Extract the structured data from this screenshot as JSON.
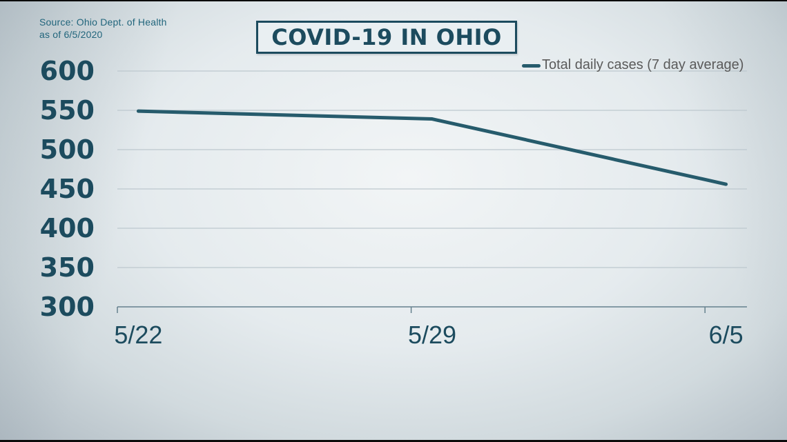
{
  "page": {
    "source_line1": "Source: Ohio Dept. of Health",
    "source_line2": "as of 6/5/2020",
    "title": "COVID-19 IN OHIO"
  },
  "legend": {
    "label": "Total daily cases (7 day average)"
  },
  "colors": {
    "teal_text": "#1c4b5e",
    "line": "#265b6c",
    "grid": "#bdc8ce",
    "axis": "#64808d",
    "legend_text": "#5a5a5a",
    "source_text": "#21657c"
  },
  "chart_data": {
    "type": "line",
    "title": "COVID-19 IN OHIO",
    "series": [
      {
        "name": "Total daily cases (7 day average)",
        "x": [
          "5/22",
          "5/29",
          "6/5"
        ],
        "day_index": [
          0,
          7,
          14
        ],
        "values": [
          549,
          539,
          456
        ]
      }
    ],
    "x_tick_labels": [
      "5/22",
      "5/29",
      "6/5"
    ],
    "y_tick_labels": [
      600,
      550,
      500,
      450,
      400,
      350,
      300
    ],
    "ylim": [
      300,
      600
    ],
    "n_categories": 15,
    "grid": "horizontal",
    "legend_position": "top-right",
    "source": "Source: Ohio Dept. of Health as of 6/5/2020"
  }
}
